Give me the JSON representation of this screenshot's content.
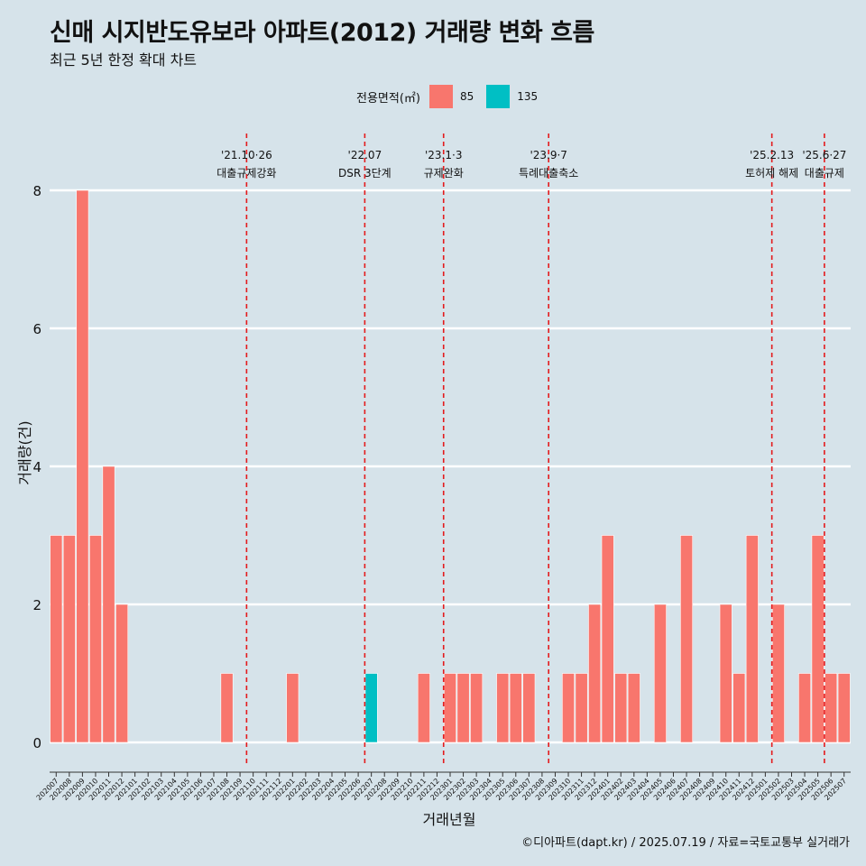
{
  "title": "신매 시지반도유보라 아파트(2012) 거래량 변화 흐름",
  "subtitle": "최근 5년 한정 확대 차트",
  "credit": "©디아파트(dapt.kr) / 2025.07.19 / 자료=국토교통부 실거래가",
  "legend": {
    "title": "전용면적(㎡)",
    "items": [
      {
        "label": "85",
        "color": "#f8766d"
      },
      {
        "label": "135",
        "color": "#00bfc4"
      }
    ]
  },
  "chart_data": {
    "type": "bar",
    "stacked": true,
    "xlabel": "거래년월",
    "ylabel": "거래량(건)",
    "ylim": [
      0,
      8.4
    ],
    "yticks": [
      0,
      2,
      4,
      6,
      8
    ],
    "grid": "horizontal",
    "categories": [
      "202007",
      "202008",
      "202009",
      "202010",
      "202011",
      "202012",
      "202101",
      "202102",
      "202103",
      "202104",
      "202105",
      "202106",
      "202107",
      "202108",
      "202109",
      "202110",
      "202111",
      "202112",
      "202201",
      "202202",
      "202203",
      "202204",
      "202205",
      "202206",
      "202207",
      "202208",
      "202209",
      "202210",
      "202211",
      "202212",
      "202301",
      "202302",
      "202303",
      "202304",
      "202305",
      "202306",
      "202307",
      "202308",
      "202309",
      "202310",
      "202311",
      "202312",
      "202401",
      "202402",
      "202403",
      "202404",
      "202405",
      "202406",
      "202407",
      "202408",
      "202409",
      "202410",
      "202411",
      "202412",
      "202501",
      "202502",
      "202503",
      "202504",
      "202505",
      "202506",
      "202507"
    ],
    "series": [
      {
        "name": "85",
        "color": "#f8766d",
        "values": [
          3,
          3,
          8,
          3,
          4,
          2,
          0,
          0,
          0,
          0,
          0,
          0,
          0,
          1,
          0,
          0,
          0,
          0,
          1,
          0,
          0,
          0,
          0,
          0,
          0,
          0,
          0,
          0,
          1,
          0,
          1,
          1,
          1,
          0,
          1,
          1,
          1,
          0,
          0,
          1,
          1,
          2,
          3,
          1,
          1,
          0,
          2,
          0,
          3,
          0,
          0,
          2,
          1,
          3,
          0,
          2,
          0,
          1,
          3,
          1,
          1
        ]
      },
      {
        "name": "135",
        "color": "#00bfc4",
        "values": [
          0,
          0,
          0,
          0,
          0,
          0,
          0,
          0,
          0,
          0,
          0,
          0,
          0,
          0,
          0,
          0,
          0,
          0,
          0,
          0,
          0,
          0,
          0,
          0,
          1,
          0,
          0,
          0,
          0,
          0,
          0,
          0,
          0,
          0,
          0,
          0,
          0,
          0,
          0,
          0,
          0,
          0,
          0,
          0,
          0,
          0,
          0,
          0,
          0,
          0,
          0,
          0,
          0,
          0,
          0,
          0,
          0,
          0,
          0,
          0,
          0
        ]
      }
    ],
    "annotations": [
      {
        "date": "'21.10·26",
        "label": "대출규제강화",
        "x": "202110"
      },
      {
        "date": "'22.07",
        "label": "DSR 3단계",
        "x": "202207"
      },
      {
        "date": "'23.1·3",
        "label": "규제완화",
        "x": "202301"
      },
      {
        "date": "'23.9·7",
        "label": "특례대출축소",
        "x": "202309"
      },
      {
        "date": "'25.2.13",
        "label": "토허제 해제",
        "x": "202502"
      },
      {
        "date": "'25.6·27",
        "label": "대출규제",
        "x": "202506"
      }
    ]
  }
}
